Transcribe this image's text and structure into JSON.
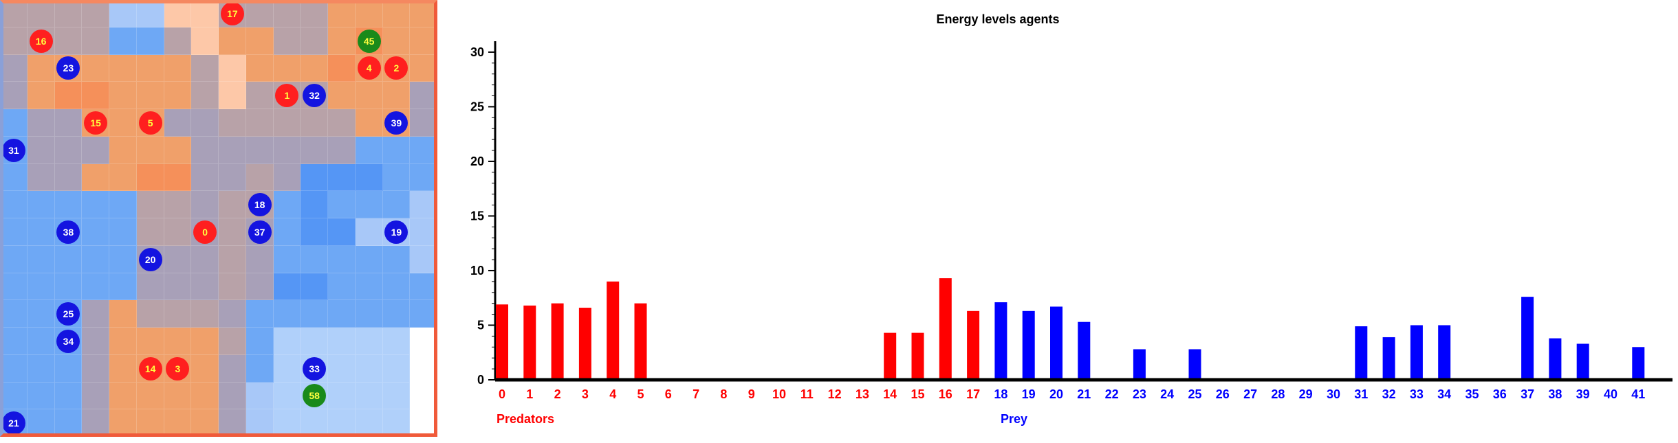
{
  "grid": {
    "rows": 16,
    "cols": 16,
    "palette": {
      "r": "#b8a2a8",
      "o": "#f0a06a",
      "O": "#f5905a",
      "p": "#fdc8a8",
      "g": "#a8a0b8",
      "b": "#6ea8f5",
      "B": "#5596f5",
      "l": "#a8c8f8",
      "L": "#b0d0fa",
      "w": "#ffffff"
    },
    "cells": [
      "rrrrllpprrrroooo",
      "rrrrbbrpoorroOoo",
      "goooooorpoooOooo",
      "goOOooorprrrooog",
      "bggoooggrrrrroog",
      "bgggoooggggggbbb",
      "bggooOOggrgBBBbb",
      "bbbbbrrgrrbBbbbl",
      "bbbbbrrgrgbBBlll",
      "bbbbbgggrgbbbbbl",
      "bbbbbgggrgBBbbbb",
      "bbbgorrrgbbbbbbb",
      "bbbgoooorbLLLLLw",
      "bbbgoooogbLLLLLw",
      "bbbgooooglLLLLLw",
      "bbbgooooglLLLLLw"
    ],
    "agents": [
      {
        "id": "17",
        "kind": "predator",
        "col": 8,
        "row": 0
      },
      {
        "id": "16",
        "kind": "predator",
        "col": 1,
        "row": 1
      },
      {
        "id": "45",
        "kind": "green",
        "col": 13,
        "row": 1
      },
      {
        "id": "23",
        "kind": "prey",
        "col": 2,
        "row": 2
      },
      {
        "id": "4",
        "kind": "predator",
        "col": 13,
        "row": 2
      },
      {
        "id": "2",
        "kind": "predator",
        "col": 14,
        "row": 2
      },
      {
        "id": "1",
        "kind": "predator",
        "col": 10,
        "row": 3
      },
      {
        "id": "32",
        "kind": "prey",
        "col": 11,
        "row": 3
      },
      {
        "id": "15",
        "kind": "predator",
        "col": 3,
        "row": 4
      },
      {
        "id": "5",
        "kind": "predator",
        "col": 5,
        "row": 4
      },
      {
        "id": "39",
        "kind": "prey",
        "col": 14,
        "row": 4
      },
      {
        "id": "31",
        "kind": "prey",
        "col": 0,
        "row": 5
      },
      {
        "id": "18",
        "kind": "prey",
        "col": 9,
        "row": 7
      },
      {
        "id": "38",
        "kind": "prey",
        "col": 2,
        "row": 8
      },
      {
        "id": "0",
        "kind": "predator",
        "col": 7,
        "row": 8
      },
      {
        "id": "37",
        "kind": "prey",
        "col": 9,
        "row": 8
      },
      {
        "id": "19",
        "kind": "prey",
        "col": 14,
        "row": 8
      },
      {
        "id": "20",
        "kind": "prey",
        "col": 5,
        "row": 9
      },
      {
        "id": "25",
        "kind": "prey",
        "col": 2,
        "row": 11
      },
      {
        "id": "34",
        "kind": "prey",
        "col": 2,
        "row": 12
      },
      {
        "id": "14",
        "kind": "predator",
        "col": 5,
        "row": 13
      },
      {
        "id": "3",
        "kind": "predator",
        "col": 6,
        "row": 13
      },
      {
        "id": "33",
        "kind": "prey",
        "col": 11,
        "row": 13
      },
      {
        "id": "58",
        "kind": "green",
        "col": 11,
        "row": 14
      },
      {
        "id": "21",
        "kind": "prey",
        "col": 0,
        "row": 15
      }
    ]
  },
  "chart_data": {
    "type": "bar",
    "title": "Energy levels agents",
    "ylim": [
      0,
      31
    ],
    "yticks": [
      "0",
      "5",
      "10",
      "15",
      "20",
      "25",
      "30"
    ],
    "categories": [
      "0",
      "1",
      "2",
      "3",
      "4",
      "5",
      "6",
      "7",
      "8",
      "9",
      "10",
      "11",
      "12",
      "13",
      "14",
      "15",
      "16",
      "17",
      "18",
      "19",
      "20",
      "21",
      "22",
      "23",
      "24",
      "25",
      "26",
      "27",
      "28",
      "29",
      "30",
      "31",
      "32",
      "33",
      "34",
      "35",
      "36",
      "37",
      "38",
      "39",
      "40",
      "41"
    ],
    "values": [
      6.9,
      6.8,
      7.0,
      6.6,
      9.0,
      7.0,
      0,
      0,
      0,
      0,
      0,
      0,
      0,
      0,
      4.3,
      4.3,
      9.3,
      6.3,
      7.1,
      6.3,
      6.7,
      5.3,
      0,
      2.8,
      0,
      2.8,
      0,
      0,
      0,
      0,
      0,
      4.9,
      3.9,
      5.0,
      5.0,
      0,
      0,
      7.6,
      3.8,
      3.3,
      0,
      3.0
    ],
    "predator_count": 18,
    "series_labels": {
      "predators": "Predators",
      "prey": "Prey"
    },
    "colors": {
      "predators": "#ff0000",
      "prey": "#0000ff",
      "axis": "#000000"
    },
    "grid": false
  }
}
